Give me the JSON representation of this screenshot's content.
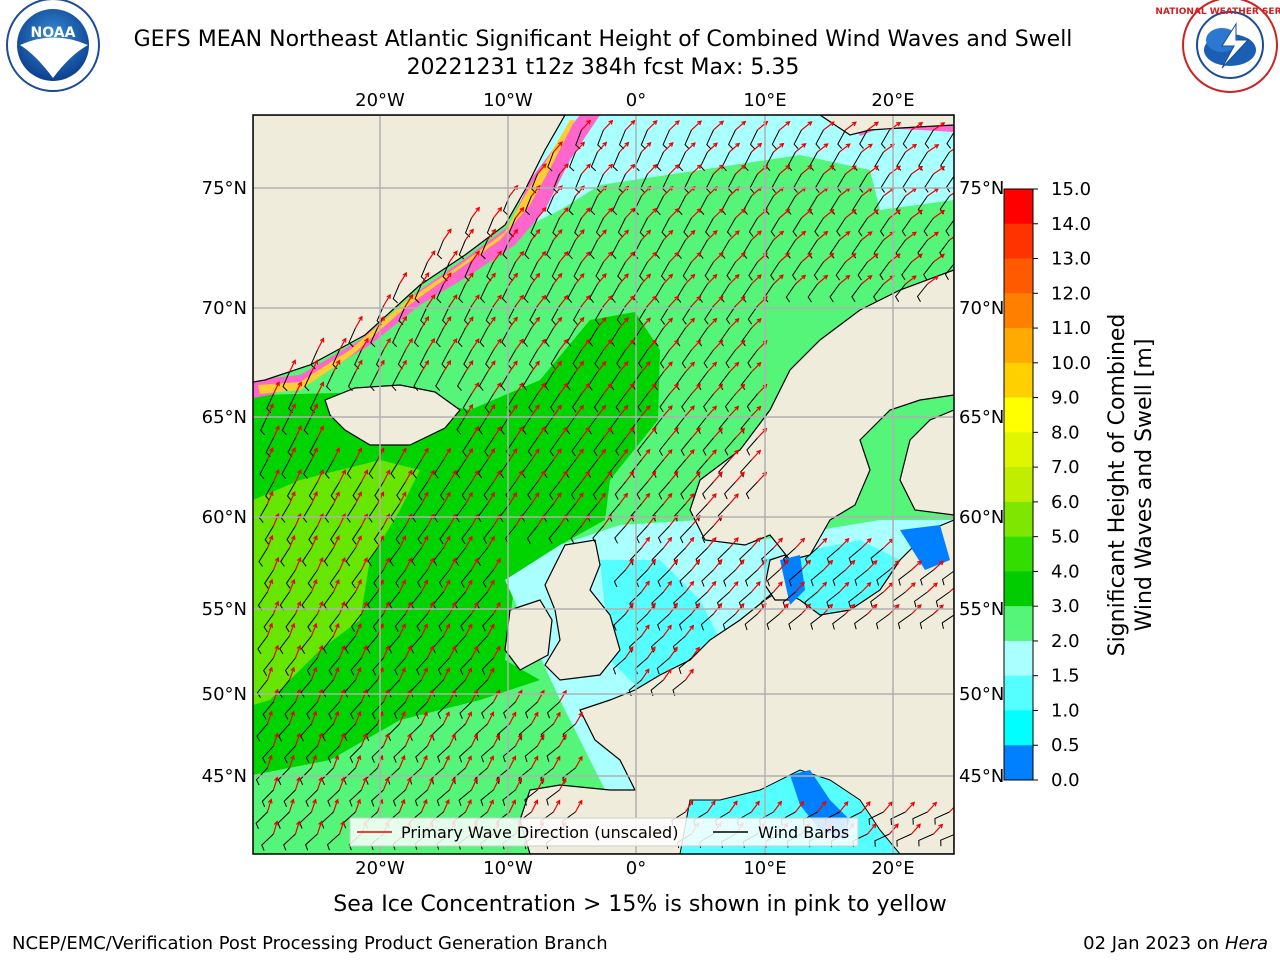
{
  "title_line1": "GEFS MEAN Northeast Atlantic Significant Height of Combined Wind Waves and Swell",
  "title_line2": "20221231 t12z 384h fcst   Max: 5.35",
  "lon_ticks": [
    "20°W",
    "10°W",
    "0°",
    "10°E",
    "20°E"
  ],
  "lat_ticks": [
    "75°N",
    "70°N",
    "65°N",
    "60°N",
    "55°N",
    "50°N",
    "45°N"
  ],
  "legend": {
    "wave_direction": "Primary Wave Direction (unscaled)",
    "wind_barbs": "Wind Barbs"
  },
  "colorbar": {
    "label_line1": "Significant Height of Combined",
    "label_line2": "Wind Waves and Swell [m]",
    "ticks": [
      "15.0",
      "14.0",
      "13.0",
      "12.0",
      "11.0",
      "10.0",
      "9.0",
      "8.0",
      "7.0",
      "6.0",
      "5.0",
      "4.0",
      "3.0",
      "2.0",
      "1.5",
      "1.0",
      "0.5",
      "0.0"
    ],
    "colors": [
      "#ff0000",
      "#ff3300",
      "#ff5a00",
      "#ff8000",
      "#ffaa00",
      "#ffd000",
      "#ffff00",
      "#e0f500",
      "#c0ee00",
      "#7ee600",
      "#33dd00",
      "#00cc00",
      "#55f57a",
      "#aaffff",
      "#55ffff",
      "#00ffff",
      "#0080ff",
      "#0000ff"
    ]
  },
  "sea_ice_note": "Sea Ice Concentration > 15% is shown in pink to yellow",
  "footer_left": "NCEP/EMC/Verification Post Processing Product Generation Branch",
  "footer_date": "02 Jan 2023 on ",
  "footer_host": "Hera",
  "logos": {
    "noaa": "NOAA",
    "nws": "NATIONAL WEATHER SERVICE"
  },
  "colors": {
    "land": "#efecdc",
    "grid": "#b0b0b0",
    "arrow": "#ee0000",
    "barb": "#000000"
  }
}
